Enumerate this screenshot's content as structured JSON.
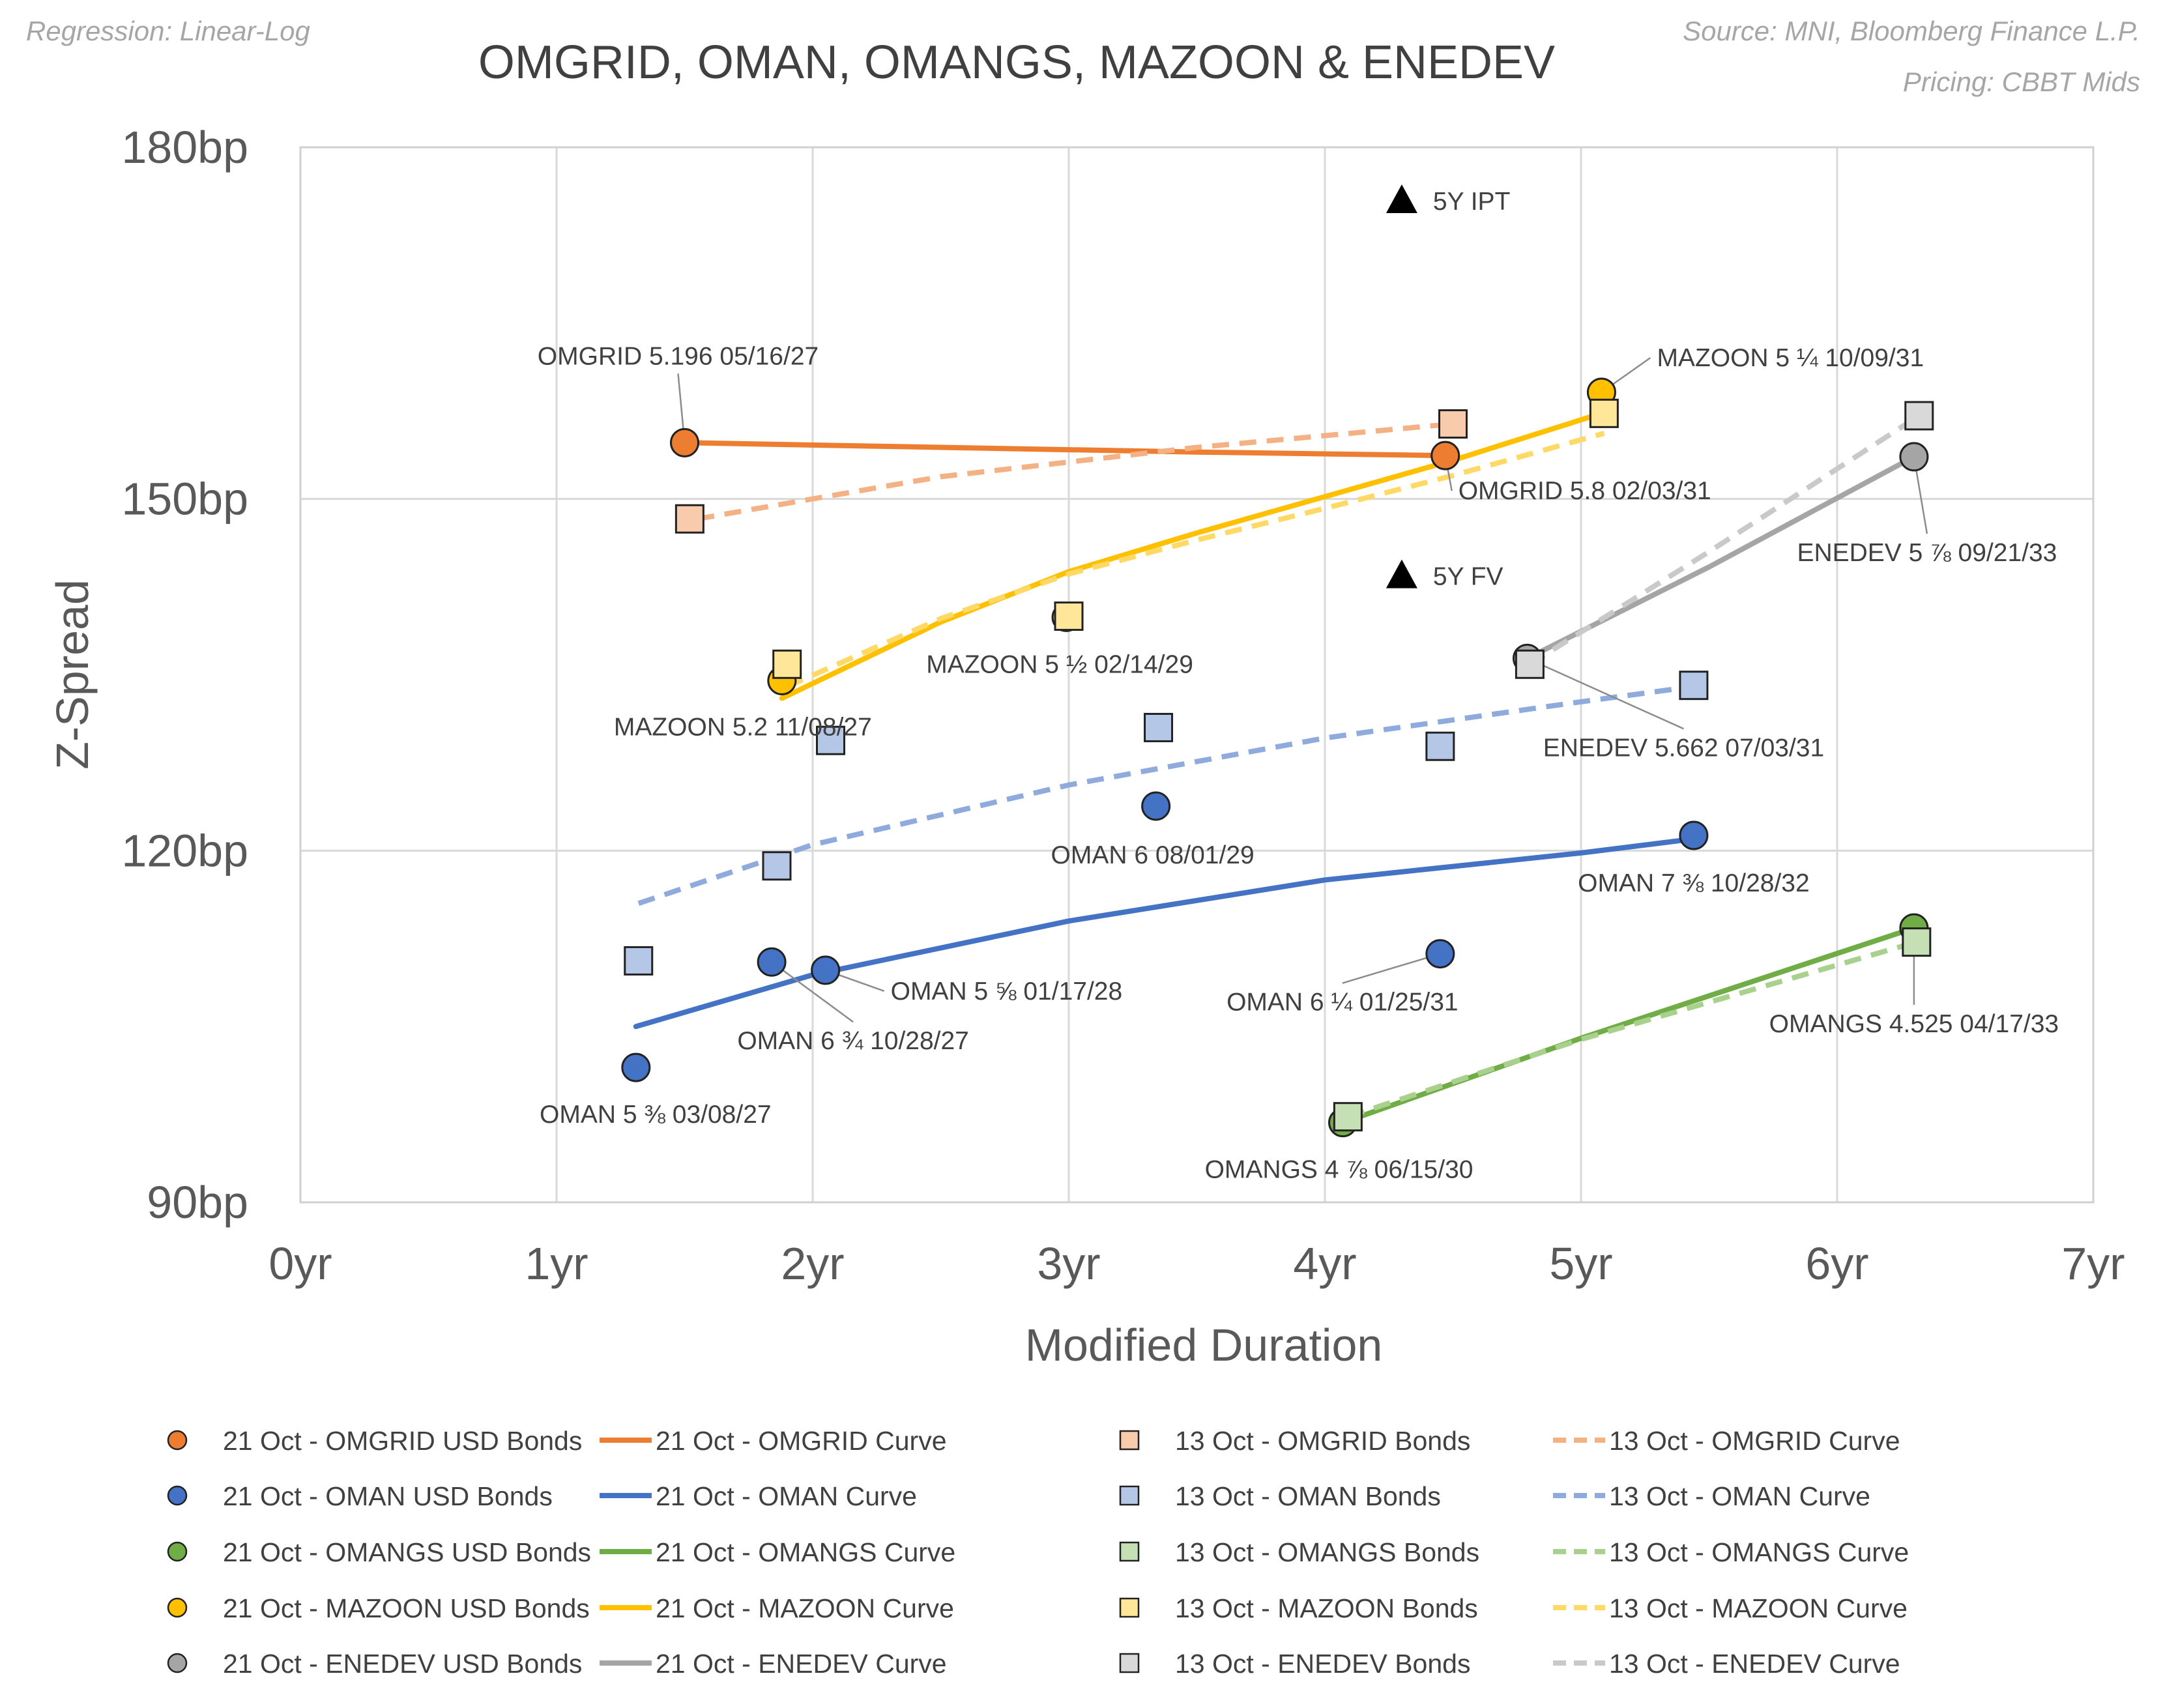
{
  "chart_data": {
    "type": "scatter",
    "title": "OMGRID, OMAN, OMANGS, MAZOON & ENEDEV",
    "note_left": "Regression: Linear-Log",
    "note_right_1": "Source: MNI, Bloomberg Finance L.P.",
    "note_right_2": "Pricing: CBBT Mids",
    "xlabel": "Modified Duration",
    "ylabel": "Z-Spread",
    "xlim": [
      0,
      7
    ],
    "ylim": [
      90,
      180
    ],
    "x_ticks": [
      {
        "value": 0,
        "label": "0yr"
      },
      {
        "value": 1,
        "label": "1yr"
      },
      {
        "value": 2,
        "label": "2yr"
      },
      {
        "value": 3,
        "label": "3yr"
      },
      {
        "value": 4,
        "label": "4yr"
      },
      {
        "value": 5,
        "label": "5yr"
      },
      {
        "value": 6,
        "label": "6yr"
      },
      {
        "value": 7,
        "label": "7yr"
      }
    ],
    "y_ticks": [
      {
        "value": 90,
        "label": "90bp"
      },
      {
        "value": 120,
        "label": "120bp"
      },
      {
        "value": 150,
        "label": "150bp"
      },
      {
        "value": 180,
        "label": "180bp"
      }
    ],
    "series": [
      {
        "name": "21 Oct - OMGRID  USD Bonds",
        "kind": "bonds",
        "marker": "circle",
        "color": "#ED7D31",
        "points": [
          {
            "x": 1.5,
            "y": 154.8
          },
          {
            "x": 4.47,
            "y": 153.7
          }
        ]
      },
      {
        "name": "21 Oct - OMGRID Curve",
        "kind": "curve",
        "style": "solid",
        "color": "#ED7D31",
        "points": [
          {
            "x": 1.5,
            "y": 154.8
          },
          {
            "x": 2.5,
            "y": 154.4
          },
          {
            "x": 3.5,
            "y": 154.0
          },
          {
            "x": 4.47,
            "y": 153.7
          }
        ]
      },
      {
        "name": "13 Oct - OMGRID Bonds",
        "kind": "bonds",
        "marker": "square",
        "color": "#F8CBAD",
        "points": [
          {
            "x": 1.52,
            "y": 148.3
          },
          {
            "x": 4.5,
            "y": 156.4
          }
        ]
      },
      {
        "name": "13 Oct - OMGRID Curve",
        "kind": "curve",
        "style": "dashed",
        "color": "#F4B183",
        "points": [
          {
            "x": 1.55,
            "y": 148.3
          },
          {
            "x": 2.5,
            "y": 151.9
          },
          {
            "x": 3.5,
            "y": 154.4
          },
          {
            "x": 4.5,
            "y": 156.4
          }
        ]
      },
      {
        "name": "21 Oct - OMAN  USD Bonds",
        "kind": "bonds",
        "marker": "circle",
        "color": "#4472C4",
        "points": [
          {
            "x": 1.31,
            "y": 101.5
          },
          {
            "x": 1.84,
            "y": 110.5
          },
          {
            "x": 2.05,
            "y": 109.8
          },
          {
            "x": 3.34,
            "y": 123.8
          },
          {
            "x": 4.45,
            "y": 111.2
          },
          {
            "x": 5.44,
            "y": 121.3
          }
        ]
      },
      {
        "name": "21 Oct - OMAN Curve",
        "kind": "curve",
        "style": "solid",
        "color": "#4472C4",
        "points": [
          {
            "x": 1.31,
            "y": 105.0
          },
          {
            "x": 2.0,
            "y": 109.4
          },
          {
            "x": 3.0,
            "y": 114.0
          },
          {
            "x": 4.0,
            "y": 117.5
          },
          {
            "x": 5.0,
            "y": 119.8
          },
          {
            "x": 5.44,
            "y": 121.0
          }
        ]
      },
      {
        "name": "13 Oct - OMAN Bonds",
        "kind": "bonds",
        "marker": "square",
        "color": "#B4C7E7",
        "points": [
          {
            "x": 1.32,
            "y": 110.6
          },
          {
            "x": 1.86,
            "y": 118.7
          },
          {
            "x": 2.07,
            "y": 129.4
          },
          {
            "x": 3.35,
            "y": 130.5
          },
          {
            "x": 4.45,
            "y": 128.9
          },
          {
            "x": 5.44,
            "y": 134.1
          }
        ]
      },
      {
        "name": "13 Oct - OMAN Curve",
        "kind": "curve",
        "style": "dashed",
        "color": "#8FAADC",
        "points": [
          {
            "x": 1.32,
            "y": 115.5
          },
          {
            "x": 2.0,
            "y": 120.5
          },
          {
            "x": 3.0,
            "y": 125.6
          },
          {
            "x": 4.0,
            "y": 129.6
          },
          {
            "x": 5.0,
            "y": 132.7
          },
          {
            "x": 5.44,
            "y": 134.0
          }
        ]
      },
      {
        "name": "21 Oct - OMANGS  USD Bonds",
        "kind": "bonds",
        "marker": "circle",
        "color": "#70AD47",
        "points": [
          {
            "x": 4.07,
            "y": 96.8
          },
          {
            "x": 6.3,
            "y": 113.4
          }
        ]
      },
      {
        "name": "21 Oct - OMANGS Curve",
        "kind": "curve",
        "style": "solid",
        "color": "#70AD47",
        "points": [
          {
            "x": 4.07,
            "y": 96.8
          },
          {
            "x": 5.0,
            "y": 104.0
          },
          {
            "x": 6.3,
            "y": 113.4
          }
        ]
      },
      {
        "name": "13 Oct - OMANGS Bonds",
        "kind": "bonds",
        "marker": "square",
        "color": "#C5E0B4",
        "points": [
          {
            "x": 4.09,
            "y": 97.3
          },
          {
            "x": 6.31,
            "y": 112.2
          }
        ]
      },
      {
        "name": "13 Oct - OMANGS Curve",
        "kind": "curve",
        "style": "dashed",
        "color": "#A9D18E",
        "points": [
          {
            "x": 4.09,
            "y": 97.3
          },
          {
            "x": 5.0,
            "y": 103.9
          },
          {
            "x": 6.31,
            "y": 112.2
          }
        ]
      },
      {
        "name": "21 Oct - MAZOON  USD Bonds",
        "kind": "bonds",
        "marker": "circle",
        "color": "#FFC000",
        "points": [
          {
            "x": 1.88,
            "y": 134.5
          },
          {
            "x": 2.99,
            "y": 139.9
          },
          {
            "x": 5.08,
            "y": 159.1
          }
        ]
      },
      {
        "name": "21 Oct - MAZOON Curve",
        "kind": "curve",
        "style": "solid",
        "color": "#FFC000",
        "points": [
          {
            "x": 1.88,
            "y": 133.0
          },
          {
            "x": 2.5,
            "y": 139.5
          },
          {
            "x": 3.0,
            "y": 143.8
          },
          {
            "x": 3.5,
            "y": 147.1
          },
          {
            "x": 4.0,
            "y": 150.2
          },
          {
            "x": 4.5,
            "y": 153.3
          },
          {
            "x": 5.08,
            "y": 157.3
          }
        ]
      },
      {
        "name": "13 Oct - MAZOON Bonds",
        "kind": "bonds",
        "marker": "square",
        "color": "#FFE699",
        "points": [
          {
            "x": 1.9,
            "y": 135.9
          },
          {
            "x": 3.0,
            "y": 140.0
          },
          {
            "x": 5.09,
            "y": 157.3
          }
        ]
      },
      {
        "name": "13 Oct - MAZOON Curve",
        "kind": "curve",
        "style": "dashed",
        "color": "#FFD966",
        "points": [
          {
            "x": 1.9,
            "y": 134.0
          },
          {
            "x": 2.5,
            "y": 139.8
          },
          {
            "x": 3.0,
            "y": 143.6
          },
          {
            "x": 3.5,
            "y": 146.5
          },
          {
            "x": 4.0,
            "y": 149.2
          },
          {
            "x": 4.5,
            "y": 152.0
          },
          {
            "x": 5.09,
            "y": 155.6
          }
        ]
      },
      {
        "name": "21 Oct - ENEDEV  USD Bonds",
        "kind": "bonds",
        "marker": "circle",
        "color": "#A5A5A5",
        "points": [
          {
            "x": 4.79,
            "y": 136.4
          },
          {
            "x": 6.3,
            "y": 153.6
          }
        ]
      },
      {
        "name": "21 Oct - ENEDEV Curve",
        "kind": "curve",
        "style": "solid",
        "color": "#A5A5A5",
        "points": [
          {
            "x": 4.79,
            "y": 136.4
          },
          {
            "x": 5.5,
            "y": 144.2
          },
          {
            "x": 6.3,
            "y": 153.6
          }
        ]
      },
      {
        "name": "13 Oct - ENEDEV Bonds",
        "kind": "bonds",
        "marker": "square",
        "color": "#D9D9D9",
        "points": [
          {
            "x": 4.8,
            "y": 135.9
          },
          {
            "x": 6.32,
            "y": 157.1
          }
        ]
      },
      {
        "name": "13 Oct - ENEDEV Curve",
        "kind": "curve",
        "style": "dashed",
        "color": "#C9C9C9",
        "points": [
          {
            "x": 4.8,
            "y": 135.9
          },
          {
            "x": 5.5,
            "y": 145.5
          },
          {
            "x": 6.32,
            "y": 157.1
          }
        ]
      }
    ],
    "reference_points": [
      {
        "label": "5Y IPT",
        "x": 4.3,
        "y": 175.5,
        "marker": "triangle",
        "color": "#000000"
      },
      {
        "label": "5Y FV",
        "x": 4.3,
        "y": 143.5,
        "marker": "triangle",
        "color": "#000000"
      }
    ],
    "annotations": [
      {
        "text": "OMGRID 5.196 05/16/27",
        "x": 1.5,
        "y": 154.8
      },
      {
        "text": "OMGRID 5.8 02/03/31",
        "x": 4.47,
        "y": 153.7
      },
      {
        "text": "MAZOON 5 ¼ 10/09/31",
        "x": 5.08,
        "y": 159.1
      },
      {
        "text": "MAZOON 5 ½ 02/14/29",
        "x": 2.99,
        "y": 139.9
      },
      {
        "text": "MAZOON 5.2 11/08/27",
        "x": 1.88,
        "y": 134.5
      },
      {
        "text": "ENEDEV 5 ⅞ 09/21/33",
        "x": 6.3,
        "y": 153.6
      },
      {
        "text": "ENEDEV 5.662 07/03/31",
        "x": 4.79,
        "y": 136.4
      },
      {
        "text": "OMAN 6 08/01/29",
        "x": 3.34,
        "y": 123.8
      },
      {
        "text": "OMAN 7 ⅜ 10/28/32",
        "x": 5.44,
        "y": 121.3
      },
      {
        "text": "OMAN 5 ⅝ 01/17/28",
        "x": 2.05,
        "y": 109.8
      },
      {
        "text": "OMAN 6 ¾ 10/28/27",
        "x": 1.84,
        "y": 110.5
      },
      {
        "text": "OMAN 5 ⅜ 03/08/27",
        "x": 1.31,
        "y": 101.5
      },
      {
        "text": "OMAN 6 ¼ 01/25/31",
        "x": 4.45,
        "y": 111.2
      },
      {
        "text": "OMANGS 4.525 04/17/33",
        "x": 6.3,
        "y": 113.4
      },
      {
        "text": "OMANGS 4 ⅞ 06/15/30",
        "x": 4.07,
        "y": 96.8
      }
    ],
    "legend_position": "bottom"
  }
}
